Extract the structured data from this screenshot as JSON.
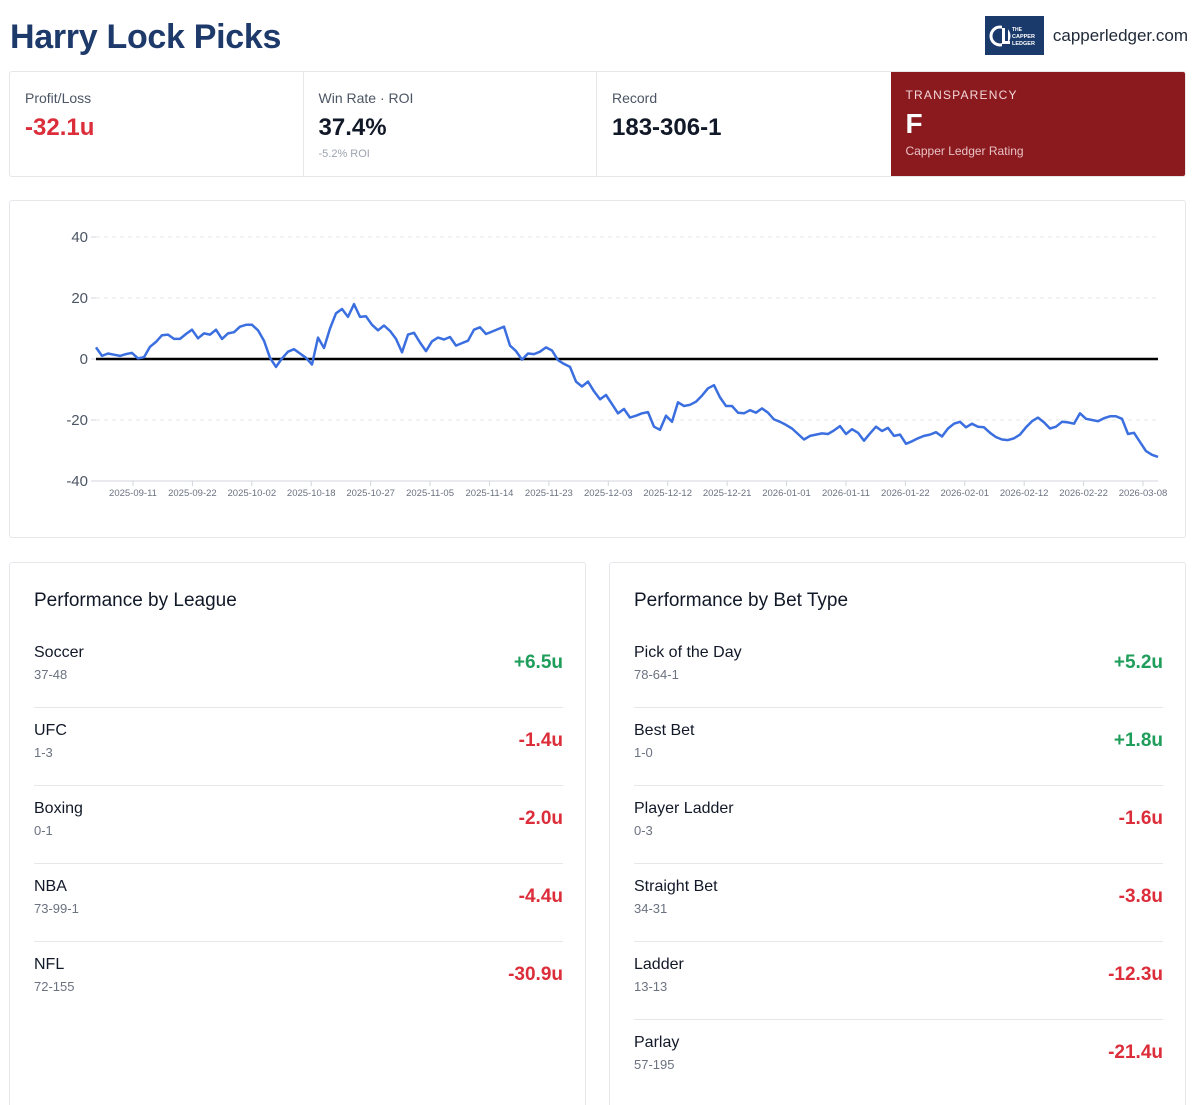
{
  "header": {
    "title": "Harry Lock Picks",
    "logo_text": "THE CAPPER LEDGER",
    "site": "capperledger.com"
  },
  "stats": {
    "profit_label": "Profit/Loss",
    "profit_value": "-32.1u",
    "winrate_label": "Win Rate · ROI",
    "winrate_value": "37.4%",
    "roi_sub": "-5.2% ROI",
    "record_label": "Record",
    "record_value": "183-306-1",
    "rating_label": "TRANSPARENCY",
    "rating_grade": "F",
    "rating_sub": "Capper Ledger Rating"
  },
  "colors": {
    "title": "#1e3a6b",
    "negative": "#dc2d3a",
    "positive": "#1f9d5b",
    "rating_bg": "#8b1a1f",
    "line": "#3b6fe0"
  },
  "chart_data": {
    "type": "line",
    "title": "",
    "xlabel": "",
    "ylabel": "",
    "ylim": [
      -40,
      40
    ],
    "yticks": [
      40,
      20,
      0,
      -20,
      -40
    ],
    "grid": "horizontal dashed",
    "zero_line": true,
    "xtick_labels": [
      "2025-09-11",
      "2025-09-22",
      "2025-10-02",
      "2025-10-18",
      "2025-10-27",
      "2025-11-05",
      "2025-11-14",
      "2025-11-23",
      "2025-12-03",
      "2025-12-12",
      "2025-12-21",
      "2026-01-01",
      "2026-01-11",
      "2026-01-22",
      "2026-02-01",
      "2026-02-12",
      "2026-02-22",
      "2026-03-08"
    ],
    "series": [
      {
        "values": [
          3.8,
          1.0,
          1.8,
          1.4,
          1.0,
          1.6,
          2.0,
          0.2,
          0.6,
          4.0,
          5.6,
          7.8,
          8.0,
          6.6,
          6.6,
          8.2,
          9.6,
          6.8,
          8.4,
          8.0,
          9.6,
          6.6,
          8.4,
          8.8,
          10.6,
          11.2,
          11.2,
          9.4,
          6.0,
          0.4,
          -2.6,
          0.2,
          2.4,
          3.2,
          1.8,
          0.4,
          -1.8,
          7.0,
          3.6,
          10.0,
          15.0,
          16.4,
          13.8,
          18.0,
          13.8,
          14.0,
          11.2,
          9.4,
          11.0,
          9.2,
          6.6,
          2.2,
          8.0,
          8.6,
          5.4,
          2.6,
          5.8,
          7.0,
          6.4,
          7.2,
          4.4,
          5.2,
          6.0,
          9.6,
          10.4,
          8.2,
          9.0,
          9.8,
          10.6,
          4.4,
          2.6,
          -0.2,
          1.8,
          1.6,
          2.4,
          3.8,
          2.8,
          -0.4,
          -1.6,
          -2.6,
          -7.4,
          -9.0,
          -7.4,
          -10.6,
          -13.2,
          -11.8,
          -14.8,
          -17.8,
          -16.4,
          -19.2,
          -18.6,
          -17.8,
          -17.4,
          -22.2,
          -23.2,
          -18.6,
          -20.6,
          -14.2,
          -15.4,
          -15.0,
          -14.0,
          -12.0,
          -9.6,
          -8.6,
          -12.6,
          -15.4,
          -15.4,
          -17.6,
          -17.8,
          -16.8,
          -17.6,
          -16.2,
          -17.6,
          -19.8,
          -20.6,
          -21.6,
          -22.8,
          -24.6,
          -26.4,
          -25.2,
          -24.8,
          -24.4,
          -24.6,
          -23.4,
          -22.0,
          -24.6,
          -23.0,
          -24.2,
          -26.8,
          -24.4,
          -22.2,
          -23.6,
          -22.6,
          -25.2,
          -24.8,
          -27.8,
          -27.0,
          -26.0,
          -25.2,
          -24.8,
          -24.0,
          -25.4,
          -22.8,
          -21.2,
          -20.6,
          -22.4,
          -21.2,
          -22.2,
          -22.4,
          -24.2,
          -25.6,
          -26.4,
          -26.6,
          -26.0,
          -24.8,
          -22.4,
          -20.4,
          -19.2,
          -20.8,
          -22.8,
          -22.2,
          -20.6,
          -20.8,
          -21.2,
          -17.8,
          -19.6,
          -20.0,
          -20.4,
          -19.4,
          -18.8,
          -18.8,
          -19.6,
          -24.6,
          -24.2,
          -27.2,
          -30.2,
          -31.4,
          -32.1
        ]
      }
    ]
  },
  "league": {
    "title": "Performance by League",
    "rows": [
      {
        "name": "Soccer",
        "record": "37-48",
        "value": "+6.5u",
        "sign": "pos"
      },
      {
        "name": "UFC",
        "record": "1-3",
        "value": "-1.4u",
        "sign": "neg"
      },
      {
        "name": "Boxing",
        "record": "0-1",
        "value": "-2.0u",
        "sign": "neg"
      },
      {
        "name": "NBA",
        "record": "73-99-1",
        "value": "-4.4u",
        "sign": "neg"
      },
      {
        "name": "NFL",
        "record": "72-155",
        "value": "-30.9u",
        "sign": "neg"
      }
    ]
  },
  "bettype": {
    "title": "Performance by Bet Type",
    "rows": [
      {
        "name": "Pick of the Day",
        "record": "78-64-1",
        "value": "+5.2u",
        "sign": "pos"
      },
      {
        "name": "Best Bet",
        "record": "1-0",
        "value": "+1.8u",
        "sign": "pos"
      },
      {
        "name": "Player Ladder",
        "record": "0-3",
        "value": "-1.6u",
        "sign": "neg"
      },
      {
        "name": "Straight Bet",
        "record": "34-31",
        "value": "-3.8u",
        "sign": "neg"
      },
      {
        "name": "Ladder",
        "record": "13-13",
        "value": "-12.3u",
        "sign": "neg"
      },
      {
        "name": "Parlay",
        "record": "57-195",
        "value": "-21.4u",
        "sign": "neg"
      }
    ]
  }
}
